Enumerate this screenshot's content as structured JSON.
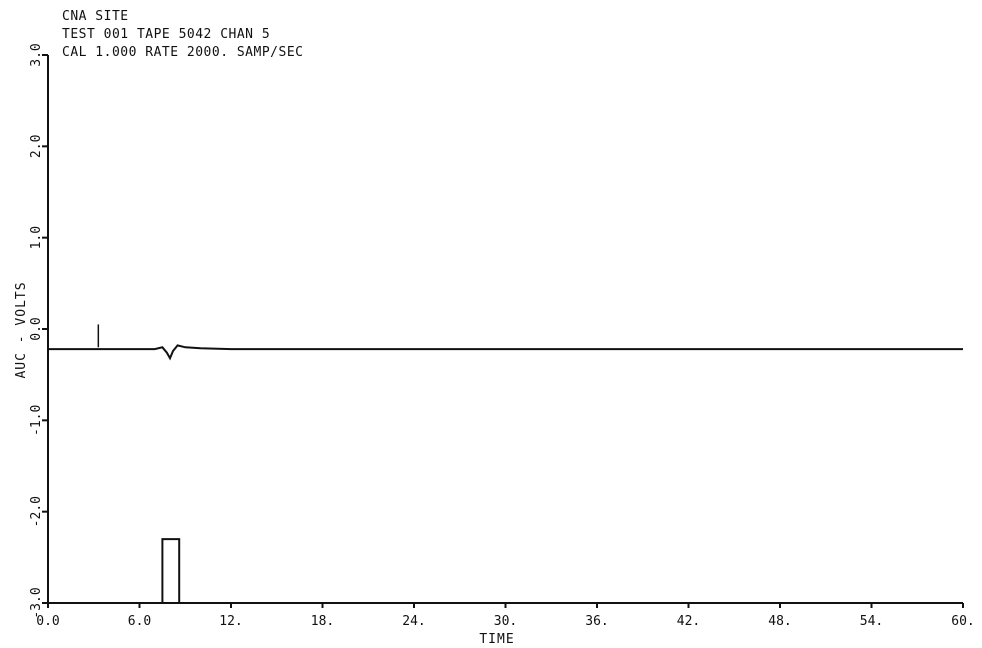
{
  "header": {
    "line1": "CNA SITE",
    "line2": "TEST 001   TAPE 5042   CHAN  5",
    "line3": "CAL     1.000      RATE    2000. SAMP/SEC"
  },
  "chart_data": {
    "type": "line",
    "title": "",
    "xlabel": "TIME",
    "ylabel": "AUC - VOLTS",
    "xlim": [
      0,
      60
    ],
    "ylim": [
      -3.0,
      3.0
    ],
    "x_ticks": [
      "0.0",
      "6.0",
      "12.",
      "18.",
      "24.",
      "30.",
      "36.",
      "42.",
      "48.",
      "54.",
      "60."
    ],
    "y_ticks": [
      "-3.0",
      "-2.0",
      "-1.0",
      "0.0",
      "1.0",
      "2.0",
      "3.0"
    ],
    "grid": false,
    "series": [
      {
        "x": [
          0,
          2,
          4,
          6,
          7,
          7.5,
          7.8,
          8.0,
          8.2,
          8.5,
          9,
          10,
          12,
          18,
          24,
          30,
          36,
          42,
          48,
          54,
          60
        ],
        "values": [
          -0.22,
          -0.22,
          -0.22,
          -0.22,
          -0.22,
          -0.2,
          -0.26,
          -0.32,
          -0.24,
          -0.18,
          -0.2,
          -0.21,
          -0.22,
          -0.22,
          -0.22,
          -0.22,
          -0.22,
          -0.22,
          -0.22,
          -0.22,
          -0.22
        ]
      }
    ],
    "marker": {
      "x": 3.3,
      "y_bottom": -0.2,
      "y_top": 0.05
    },
    "pulse": {
      "x_start": 7.5,
      "x_end": 8.6,
      "y_low": -3.0,
      "y_high": -2.3
    }
  }
}
